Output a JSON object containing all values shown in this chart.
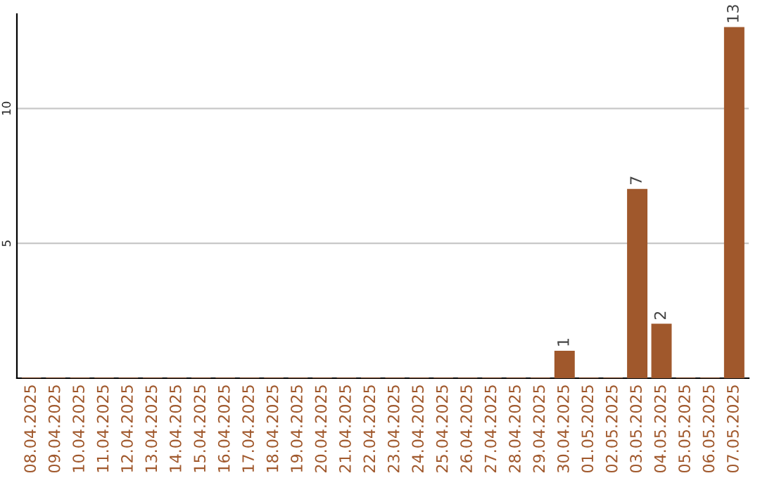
{
  "chart_data": {
    "type": "bar",
    "categories": [
      "08.04.2025",
      "09.04.2025",
      "10.04.2025",
      "11.04.2025",
      "12.04.2025",
      "13.04.2025",
      "14.04.2025",
      "15.04.2025",
      "16.04.2025",
      "17.04.2025",
      "18.04.2025",
      "19.04.2025",
      "20.04.2025",
      "21.04.2025",
      "22.04.2025",
      "23.04.2025",
      "24.04.2025",
      "25.04.2025",
      "26.04.2025",
      "27.04.2025",
      "28.04.2025",
      "29.04.2025",
      "30.04.2025",
      "01.05.2025",
      "02.05.2025",
      "03.05.2025",
      "04.05.2025",
      "05.05.2025",
      "06.05.2025",
      "07.05.2025"
    ],
    "values": [
      0,
      0,
      0,
      0,
      0,
      0,
      0,
      0,
      0,
      0,
      0,
      0,
      0,
      0,
      0,
      0,
      0,
      0,
      0,
      0,
      0,
      0,
      1,
      0,
      0,
      7,
      2,
      0,
      0,
      13
    ],
    "value_labels": [
      null,
      null,
      null,
      null,
      null,
      null,
      null,
      null,
      null,
      null,
      null,
      null,
      null,
      null,
      null,
      null,
      null,
      null,
      null,
      null,
      null,
      null,
      "1",
      null,
      null,
      "7",
      "2",
      null,
      null,
      "13"
    ],
    "color": "#a0582c",
    "ylim": [
      0,
      13.5
    ],
    "yticks": [
      5,
      10
    ],
    "grid": "y"
  }
}
